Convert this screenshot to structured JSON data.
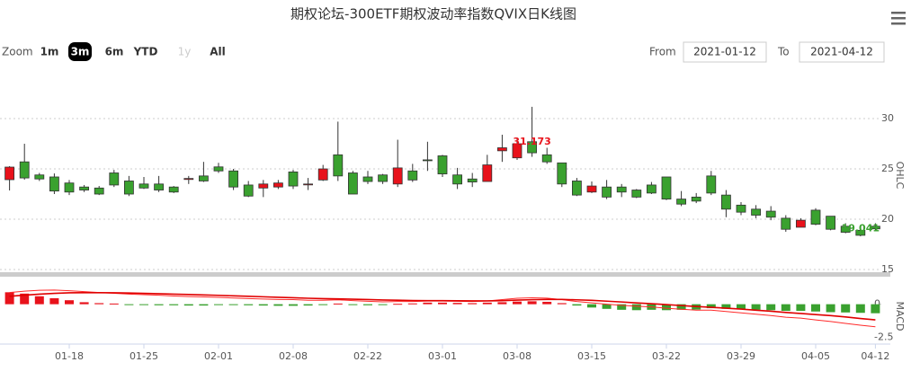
{
  "ui": {
    "zoom_label": "Zoom",
    "zoom_buttons": [
      "1m",
      "3m",
      "6m",
      "YTD",
      "1y",
      "All"
    ],
    "selected": "3m",
    "disabled": [
      "1y"
    ],
    "from_label": "From",
    "from_value": "2021-01-12",
    "to_label": "To",
    "to_value": "2021-04-12"
  },
  "chart_data": {
    "type": "candlestick",
    "title": "期权论坛-300ETF期权波动率指数QVIX日K线图",
    "y_label": "OHLC",
    "x": [
      "01-12",
      "01-13",
      "01-14",
      "01-15",
      "01-18",
      "01-19",
      "01-20",
      "01-21",
      "01-22",
      "01-25",
      "01-26",
      "01-27",
      "01-28",
      "01-29",
      "02-01",
      "02-02",
      "02-03",
      "02-04",
      "02-05",
      "02-08",
      "02-09",
      "02-10",
      "02-18",
      "02-19",
      "02-22",
      "02-23",
      "02-24",
      "02-25",
      "02-26",
      "03-01",
      "03-02",
      "03-03",
      "03-04",
      "03-05",
      "03-08",
      "03-09",
      "03-10",
      "03-11",
      "03-12",
      "03-15",
      "03-16",
      "03-17",
      "03-18",
      "03-19",
      "03-22",
      "03-23",
      "03-24",
      "03-25",
      "03-26",
      "03-29",
      "03-30",
      "03-31",
      "04-01",
      "04-02",
      "04-06",
      "04-07",
      "04-08",
      "04-09",
      "04-12"
    ],
    "open": [
      23.93,
      25.7,
      24.4,
      24.2,
      23.6,
      23.2,
      23.1,
      24.6,
      23.8,
      23.5,
      23.5,
      23.2,
      23.95,
      24.3,
      25.2,
      24.8,
      23.4,
      23.1,
      23.2,
      24.7,
      23.45,
      23.9,
      26.4,
      24.6,
      24.2,
      24.4,
      23.5,
      24.8,
      25.9,
      26.3,
      24.4,
      24.0,
      23.75,
      26.8,
      26.1,
      27.7,
      26.4,
      25.6,
      23.8,
      22.7,
      23.2,
      23.2,
      22.9,
      23.4,
      24.2,
      22.0,
      22.2,
      24.3,
      22.4,
      21.4,
      21.0,
      20.8,
      20.1,
      19.2,
      20.9,
      20.3,
      19.3,
      18.9,
      19.3
    ],
    "high": [
      25.27,
      27.5,
      24.6,
      24.55,
      23.9,
      23.4,
      23.3,
      24.9,
      24.3,
      24.2,
      24.3,
      23.3,
      24.3,
      25.7,
      25.6,
      25.0,
      23.8,
      23.9,
      23.9,
      24.9,
      24.1,
      25.4,
      29.7,
      24.8,
      24.8,
      24.5,
      27.9,
      25.5,
      27.7,
      26.4,
      25.1,
      24.6,
      26.4,
      28.4,
      28.1,
      31.173,
      27.1,
      25.6,
      24.1,
      23.75,
      23.9,
      23.5,
      23.0,
      23.7,
      24.2,
      22.8,
      22.6,
      24.8,
      22.9,
      21.7,
      21.4,
      21.3,
      20.4,
      20.1,
      21.1,
      20.3,
      19.6,
      19.4,
      19.6
    ],
    "low": [
      22.86,
      23.93,
      23.8,
      22.5,
      22.4,
      22.7,
      22.4,
      23.2,
      22.3,
      23.0,
      22.7,
      22.6,
      23.5,
      23.7,
      24.6,
      22.9,
      22.2,
      22.2,
      23.0,
      23.0,
      22.9,
      23.8,
      23.8,
      22.5,
      23.5,
      23.5,
      23.2,
      23.7,
      24.8,
      24.2,
      23.0,
      23.2,
      23.75,
      25.7,
      25.9,
      26.2,
      25.5,
      23.2,
      22.3,
      22.6,
      22.0,
      22.2,
      22.1,
      22.5,
      21.9,
      21.3,
      21.6,
      22.4,
      20.2,
      20.4,
      20.1,
      19.9,
      18.75,
      19.2,
      19.4,
      18.9,
      18.6,
      18.3,
      18.9
    ],
    "close": [
      25.18,
      24.1,
      24.0,
      22.8,
      22.7,
      22.9,
      22.5,
      23.4,
      22.5,
      23.1,
      22.9,
      22.7,
      24.05,
      23.8,
      24.8,
      23.2,
      22.3,
      23.5,
      23.6,
      23.3,
      23.5,
      25.0,
      24.3,
      22.5,
      23.75,
      23.75,
      25.1,
      23.9,
      25.85,
      24.5,
      23.5,
      23.7,
      25.4,
      27.1,
      27.5,
      26.6,
      25.7,
      23.5,
      22.4,
      23.3,
      22.2,
      22.7,
      22.2,
      22.6,
      22.0,
      21.5,
      21.8,
      22.6,
      21.0,
      20.7,
      20.4,
      20.2,
      19.0,
      19.9,
      19.5,
      19.0,
      18.7,
      18.4,
      19.041
    ],
    "up_color": "#e8121b",
    "down_color": "#3aa12f",
    "ylim": [
      15,
      34.2
    ],
    "yticks": [
      15,
      20,
      25,
      30
    ],
    "grid": true,
    "macd": {
      "type": "macd",
      "y_label": "MACD",
      "ylim": [
        -2.8,
        1.6
      ],
      "yticks": [
        -2.5,
        0
      ],
      "histogram": [
        0.9,
        0.8,
        0.6,
        0.45,
        0.3,
        0.15,
        0.08,
        0.05,
        -0.05,
        -0.06,
        -0.08,
        -0.08,
        -0.1,
        -0.1,
        -0.05,
        -0.03,
        -0.08,
        -0.1,
        -0.12,
        -0.12,
        -0.1,
        -0.05,
        0.05,
        -0.05,
        -0.08,
        -0.06,
        0.03,
        0.06,
        0.12,
        0.12,
        0.1,
        0.08,
        0.12,
        0.15,
        0.2,
        0.22,
        0.18,
        0.08,
        -0.1,
        -0.25,
        -0.35,
        -0.42,
        -0.45,
        -0.42,
        -0.45,
        -0.42,
        -0.4,
        -0.3,
        -0.35,
        -0.38,
        -0.42,
        -0.45,
        -0.5,
        -0.5,
        -0.55,
        -0.6,
        -0.62,
        -0.65,
        -0.68
      ],
      "series": [
        {
          "color": "#ff2a2a",
          "width": 1,
          "values": [
            0.88,
            0.98,
            1.05,
            1.07,
            1.02,
            0.95,
            0.88,
            0.82,
            0.76,
            0.72,
            0.68,
            0.62,
            0.58,
            0.55,
            0.52,
            0.47,
            0.42,
            0.39,
            0.36,
            0.35,
            0.3,
            0.3,
            0.33,
            0.27,
            0.22,
            0.18,
            0.2,
            0.2,
            0.24,
            0.24,
            0.22,
            0.2,
            0.25,
            0.35,
            0.45,
            0.48,
            0.46,
            0.35,
            0.2,
            0.1,
            0.0,
            -0.08,
            -0.15,
            -0.2,
            -0.3,
            -0.38,
            -0.45,
            -0.45,
            -0.55,
            -0.65,
            -0.75,
            -0.85,
            -0.98,
            -1.05,
            -1.18,
            -1.3,
            -1.45,
            -1.58,
            -1.7
          ]
        },
        {
          "color": "#e00000",
          "width": 1.6,
          "values": [
            0.6,
            0.68,
            0.76,
            0.82,
            0.86,
            0.87,
            0.87,
            0.86,
            0.84,
            0.82,
            0.79,
            0.76,
            0.73,
            0.7,
            0.67,
            0.63,
            0.6,
            0.56,
            0.52,
            0.49,
            0.45,
            0.42,
            0.4,
            0.38,
            0.35,
            0.32,
            0.3,
            0.28,
            0.27,
            0.27,
            0.26,
            0.25,
            0.25,
            0.27,
            0.31,
            0.34,
            0.36,
            0.36,
            0.33,
            0.29,
            0.23,
            0.17,
            0.1,
            0.04,
            -0.03,
            -0.1,
            -0.17,
            -0.23,
            -0.3,
            -0.37,
            -0.45,
            -0.53,
            -0.62,
            -0.7,
            -0.78,
            -0.86,
            -0.96,
            -1.08,
            -1.18
          ]
        }
      ]
    },
    "xticks": [
      "01-18",
      "01-25",
      "02-01",
      "02-08",
      "02-22",
      "03-01",
      "03-08",
      "03-15",
      "03-22",
      "03-29",
      {
        "value": "04-06",
        "label": "04-05"
      },
      "04-12"
    ]
  }
}
